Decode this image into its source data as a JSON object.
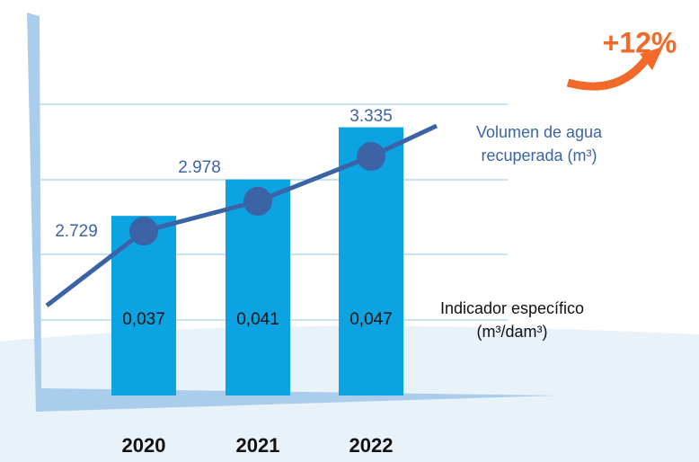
{
  "chart_data": {
    "type": "bar-line",
    "categories": [
      "2020",
      "2021",
      "2022"
    ],
    "series": [
      {
        "name": "Volumen de agua recuperada (m³)",
        "color": "#0ba3e2",
        "values": [
          2729,
          2978,
          3335
        ],
        "value_labels": [
          "2.729",
          "2.978",
          "3.335"
        ]
      },
      {
        "name": "Indicador específico (m³/dam³)",
        "color": "#3b63a6",
        "axis": "y2",
        "values": [
          0.037,
          0.041,
          0.047
        ],
        "value_labels": [
          "0,037",
          "0,041",
          "0,047"
        ]
      }
    ],
    "ylim": [
      1500,
      3800
    ],
    "y2lim": [
      0.015,
      0.06
    ],
    "annotation": "+12%",
    "annotation_color": "#f26a2a"
  }
}
